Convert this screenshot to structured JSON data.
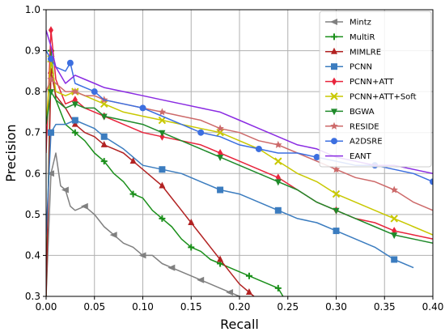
{
  "chart_data": {
    "type": "line",
    "title": "",
    "xlabel": "Recall",
    "ylabel": "Precision",
    "xlim": [
      0.0,
      0.4
    ],
    "ylim": [
      0.3,
      1.0
    ],
    "x_ticks": [
      "0.00",
      "0.05",
      "0.10",
      "0.15",
      "0.20",
      "0.25",
      "0.30",
      "0.35",
      "0.40"
    ],
    "y_ticks": [
      "0.3",
      "0.4",
      "0.5",
      "0.6",
      "0.7",
      "0.8",
      "0.9",
      "1.0"
    ],
    "grid": true,
    "legend_position": "top-right",
    "series": [
      {
        "name": "Mintz",
        "color": "#808080",
        "marker": "arrow-left",
        "x": [
          0.0,
          0.005,
          0.01,
          0.015,
          0.02,
          0.025,
          0.03,
          0.04,
          0.05,
          0.06,
          0.07,
          0.08,
          0.09,
          0.1,
          0.11,
          0.12,
          0.13,
          0.14,
          0.15,
          0.16,
          0.17,
          0.18,
          0.19,
          0.2
        ],
        "y": [
          0.3,
          0.6,
          0.65,
          0.57,
          0.56,
          0.52,
          0.51,
          0.52,
          0.5,
          0.47,
          0.45,
          0.43,
          0.42,
          0.4,
          0.4,
          0.38,
          0.37,
          0.36,
          0.35,
          0.34,
          0.33,
          0.32,
          0.31,
          0.3
        ]
      },
      {
        "name": "MultiR",
        "color": "#1a8f1a",
        "marker": "plus",
        "x": [
          0.0,
          0.005,
          0.01,
          0.02,
          0.03,
          0.04,
          0.05,
          0.06,
          0.07,
          0.08,
          0.09,
          0.1,
          0.11,
          0.12,
          0.13,
          0.14,
          0.15,
          0.16,
          0.17,
          0.18,
          0.19,
          0.2,
          0.21,
          0.22,
          0.23,
          0.24,
          0.245
        ],
        "y": [
          0.3,
          0.9,
          0.78,
          0.72,
          0.7,
          0.68,
          0.65,
          0.63,
          0.6,
          0.58,
          0.55,
          0.54,
          0.51,
          0.49,
          0.47,
          0.44,
          0.42,
          0.41,
          0.39,
          0.38,
          0.37,
          0.36,
          0.35,
          0.34,
          0.33,
          0.32,
          0.3
        ]
      },
      {
        "name": "MIMLRE",
        "color": "#b22222",
        "marker": "triangle-up",
        "x": [
          0.0,
          0.005,
          0.01,
          0.02,
          0.03,
          0.04,
          0.05,
          0.06,
          0.07,
          0.08,
          0.09,
          0.1,
          0.11,
          0.12,
          0.13,
          0.14,
          0.15,
          0.16,
          0.17,
          0.18,
          0.19,
          0.2,
          0.21,
          0.215
        ],
        "y": [
          0.3,
          0.85,
          0.79,
          0.76,
          0.72,
          0.7,
          0.69,
          0.67,
          0.66,
          0.65,
          0.63,
          0.61,
          0.59,
          0.57,
          0.54,
          0.51,
          0.48,
          0.45,
          0.42,
          0.39,
          0.36,
          0.33,
          0.31,
          0.3
        ]
      },
      {
        "name": "PCNN",
        "color": "#3b7cbf",
        "marker": "square",
        "x": [
          0.0,
          0.005,
          0.01,
          0.02,
          0.03,
          0.04,
          0.05,
          0.06,
          0.08,
          0.1,
          0.12,
          0.14,
          0.16,
          0.18,
          0.2,
          0.22,
          0.24,
          0.26,
          0.28,
          0.3,
          0.32,
          0.34,
          0.36,
          0.38
        ],
        "y": [
          0.45,
          0.7,
          0.72,
          0.72,
          0.73,
          0.72,
          0.71,
          0.69,
          0.66,
          0.62,
          0.61,
          0.6,
          0.58,
          0.56,
          0.55,
          0.53,
          0.51,
          0.49,
          0.48,
          0.46,
          0.44,
          0.42,
          0.39,
          0.37
        ]
      },
      {
        "name": "PCNN+ATT",
        "color": "#e8243c",
        "marker": "diamond",
        "x": [
          0.0,
          0.005,
          0.01,
          0.02,
          0.03,
          0.04,
          0.05,
          0.06,
          0.08,
          0.1,
          0.12,
          0.14,
          0.16,
          0.18,
          0.2,
          0.22,
          0.24,
          0.26,
          0.28,
          0.3,
          0.32,
          0.34,
          0.36,
          0.38,
          0.4
        ],
        "y": [
          0.65,
          0.95,
          0.83,
          0.77,
          0.78,
          0.76,
          0.75,
          0.74,
          0.72,
          0.7,
          0.69,
          0.68,
          0.67,
          0.65,
          0.63,
          0.61,
          0.59,
          0.56,
          0.53,
          0.51,
          0.49,
          0.48,
          0.46,
          0.45,
          0.44
        ]
      },
      {
        "name": "PCNN+ATT+Soft",
        "color": "#c8c800",
        "marker": "x",
        "x": [
          0.0,
          0.005,
          0.01,
          0.02,
          0.03,
          0.04,
          0.05,
          0.06,
          0.08,
          0.1,
          0.12,
          0.14,
          0.16,
          0.18,
          0.2,
          0.22,
          0.24,
          0.26,
          0.28,
          0.3,
          0.32,
          0.34,
          0.36,
          0.38,
          0.4
        ],
        "y": [
          0.72,
          0.88,
          0.8,
          0.79,
          0.8,
          0.79,
          0.78,
          0.77,
          0.75,
          0.74,
          0.73,
          0.72,
          0.71,
          0.7,
          0.68,
          0.66,
          0.63,
          0.6,
          0.58,
          0.55,
          0.53,
          0.51,
          0.49,
          0.47,
          0.45
        ]
      },
      {
        "name": "BGWA",
        "color": "#1f8a2a",
        "marker": "triangle-down",
        "x": [
          0.0,
          0.005,
          0.01,
          0.02,
          0.03,
          0.04,
          0.05,
          0.06,
          0.08,
          0.1,
          0.12,
          0.14,
          0.16,
          0.18,
          0.2,
          0.22,
          0.24,
          0.26,
          0.28,
          0.3,
          0.32,
          0.34,
          0.36,
          0.38,
          0.4
        ],
        "y": [
          0.72,
          0.8,
          0.78,
          0.76,
          0.77,
          0.76,
          0.76,
          0.74,
          0.73,
          0.72,
          0.7,
          0.68,
          0.66,
          0.64,
          0.62,
          0.6,
          0.58,
          0.56,
          0.53,
          0.51,
          0.49,
          0.47,
          0.45,
          0.44,
          0.43
        ]
      },
      {
        "name": "RESIDE",
        "color": "#cd6a6a",
        "marker": "star",
        "x": [
          0.0,
          0.005,
          0.01,
          0.02,
          0.03,
          0.04,
          0.05,
          0.06,
          0.08,
          0.1,
          0.12,
          0.14,
          0.16,
          0.18,
          0.2,
          0.22,
          0.24,
          0.26,
          0.28,
          0.3,
          0.32,
          0.34,
          0.36,
          0.38,
          0.4
        ],
        "y": [
          0.8,
          0.83,
          0.82,
          0.8,
          0.8,
          0.79,
          0.79,
          0.78,
          0.77,
          0.76,
          0.75,
          0.74,
          0.73,
          0.71,
          0.7,
          0.68,
          0.67,
          0.65,
          0.63,
          0.61,
          0.59,
          0.58,
          0.56,
          0.53,
          0.51
        ]
      },
      {
        "name": "A2DSRE",
        "color": "#3c6fe0",
        "marker": "circle",
        "x": [
          0.0,
          0.005,
          0.01,
          0.02,
          0.025,
          0.03,
          0.04,
          0.05,
          0.06,
          0.08,
          0.1,
          0.12,
          0.14,
          0.16,
          0.18,
          0.2,
          0.22,
          0.24,
          0.26,
          0.28,
          0.3,
          0.32,
          0.34,
          0.36,
          0.38,
          0.4
        ],
        "y": [
          0.9,
          0.88,
          0.86,
          0.85,
          0.87,
          0.82,
          0.81,
          0.8,
          0.78,
          0.77,
          0.76,
          0.74,
          0.72,
          0.7,
          0.69,
          0.67,
          0.66,
          0.65,
          0.65,
          0.64,
          0.63,
          0.62,
          0.62,
          0.61,
          0.6,
          0.58
        ]
      },
      {
        "name": "EANT",
        "color": "#8a2be2",
        "marker": "line",
        "x": [
          0.0,
          0.005,
          0.01,
          0.02,
          0.03,
          0.04,
          0.05,
          0.06,
          0.08,
          0.1,
          0.12,
          0.14,
          0.16,
          0.18,
          0.2,
          0.22,
          0.24,
          0.26,
          0.28,
          0.3,
          0.32,
          0.34,
          0.36,
          0.38,
          0.4
        ],
        "y": [
          0.95,
          0.91,
          0.86,
          0.82,
          0.84,
          0.83,
          0.82,
          0.81,
          0.8,
          0.79,
          0.78,
          0.77,
          0.76,
          0.75,
          0.73,
          0.71,
          0.69,
          0.67,
          0.66,
          0.64,
          0.63,
          0.62,
          0.62,
          0.61,
          0.6
        ]
      }
    ]
  }
}
